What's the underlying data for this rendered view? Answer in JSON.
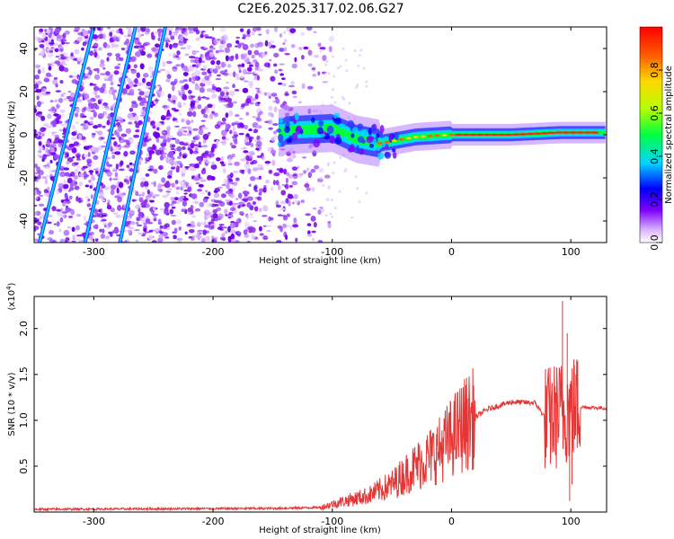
{
  "title": "C2E6.2025.317.02.06.G27",
  "chart_data": [
    {
      "type": "heatmap",
      "name": "spectrogram",
      "xlabel": "Height of straight line (km)",
      "ylabel": "Frequency (Hz)",
      "xlim": [
        -350,
        130
      ],
      "ylim": [
        -50,
        50
      ],
      "xticks": [
        -300,
        -200,
        -100,
        0,
        100
      ],
      "yticks": [
        -40,
        -20,
        0,
        20,
        40
      ],
      "colorbar": {
        "label": "Normalized spectral amplitude",
        "range": [
          0.0,
          1.0
        ],
        "ticks": [
          0.0,
          0.2,
          0.4,
          0.6,
          0.8
        ]
      },
      "signal_track": {
        "description_points": [
          {
            "h": -140,
            "f": 2
          },
          {
            "h": -100,
            "f": 3
          },
          {
            "h": -80,
            "f": -2
          },
          {
            "h": -60,
            "f": -4
          },
          {
            "h": -30,
            "f": -1
          },
          {
            "h": 0,
            "f": 0
          },
          {
            "h": 50,
            "f": 0
          },
          {
            "h": 90,
            "f": 1
          },
          {
            "h": 130,
            "f": 1
          }
        ]
      },
      "interference_lines": [
        {
          "h_start": -350,
          "f_start": -60,
          "h_end": -300,
          "f_end": 50
        },
        {
          "h_start": -320,
          "f_start": -80,
          "h_end": -265,
          "f_end": 50
        },
        {
          "h_start": -280,
          "f_start": -55,
          "h_end": -240,
          "f_end": 50
        }
      ]
    },
    {
      "type": "line",
      "name": "snr",
      "xlabel": "Height of straight line (km)",
      "ylabel": "SNR (10 * v/v)",
      "yscale_label": "(x10",
      "yscale_exp": "4",
      "xlim": [
        -350,
        130
      ],
      "ylim": [
        0,
        2.35
      ],
      "xticks": [
        -300,
        -200,
        -100,
        0,
        100
      ],
      "yticks": [
        0.5,
        1.0,
        1.5,
        2.0
      ],
      "color": "#e53535",
      "envelope": [
        {
          "h": -350,
          "v": 0.03
        },
        {
          "h": -150,
          "v": 0.04
        },
        {
          "h": -110,
          "v": 0.05
        },
        {
          "h": -90,
          "v": 0.12
        },
        {
          "h": -70,
          "v": 0.18
        },
        {
          "h": -50,
          "v": 0.3
        },
        {
          "h": -30,
          "v": 0.5
        },
        {
          "h": -10,
          "v": 0.68
        },
        {
          "h": 10,
          "v": 0.95
        },
        {
          "h": 30,
          "v": 1.12
        },
        {
          "h": 50,
          "v": 1.2
        },
        {
          "h": 70,
          "v": 1.19
        },
        {
          "h": 80,
          "v": 1.0
        },
        {
          "h": 95,
          "v": 1.1
        },
        {
          "h": 105,
          "v": 1.15
        },
        {
          "h": 130,
          "v": 1.13
        }
      ],
      "spikes": [
        {
          "h": 93,
          "v": 2.3
        },
        {
          "h": 99,
          "v": 0.12
        },
        {
          "h": 97,
          "v": 1.95
        },
        {
          "h": 101,
          "v": 0.3
        },
        {
          "h": 103,
          "v": 1.6
        }
      ]
    }
  ]
}
